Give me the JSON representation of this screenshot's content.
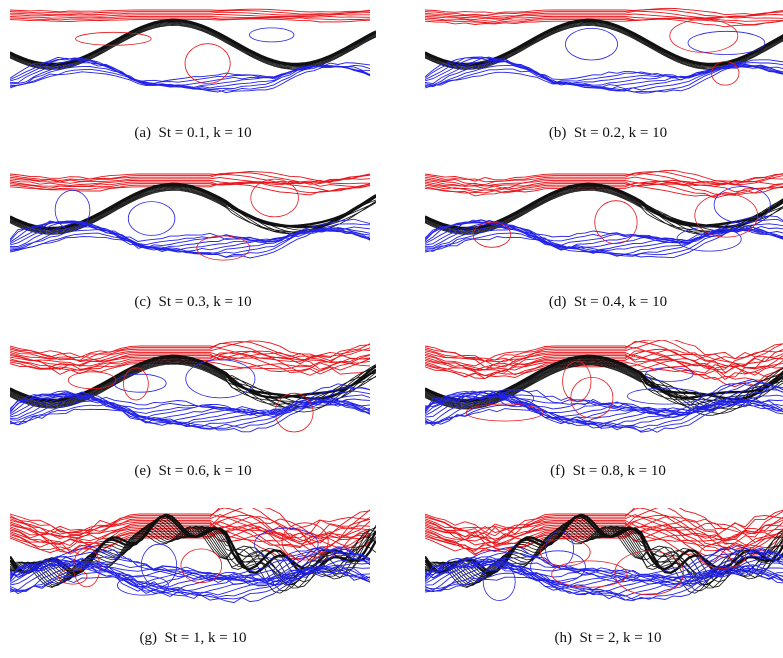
{
  "figure": {
    "colors": {
      "upper": "#e8161b",
      "middle": "#111111",
      "lower": "#2323e8"
    },
    "panels": [
      {
        "caption": "(a)  St = 0.1, k = 10",
        "st": 0.1,
        "k": 10
      },
      {
        "caption": "(b)  St = 0.2, k = 10",
        "st": 0.2,
        "k": 10
      },
      {
        "caption": "(c)  St = 0.3, k = 10",
        "st": 0.3,
        "k": 10
      },
      {
        "caption": "(d)  St = 0.4, k = 10",
        "st": 0.4,
        "k": 10
      },
      {
        "caption": "(e)  St = 0.6, k = 10",
        "st": 0.6,
        "k": 10
      },
      {
        "caption": "(f)  St = 0.8, k = 10",
        "st": 0.8,
        "k": 10
      },
      {
        "caption": "(g)  St = 1, k = 10",
        "st": 1,
        "k": 10
      },
      {
        "caption": "(h)  St = 2, k = 10",
        "st": 2,
        "k": 10
      }
    ]
  }
}
